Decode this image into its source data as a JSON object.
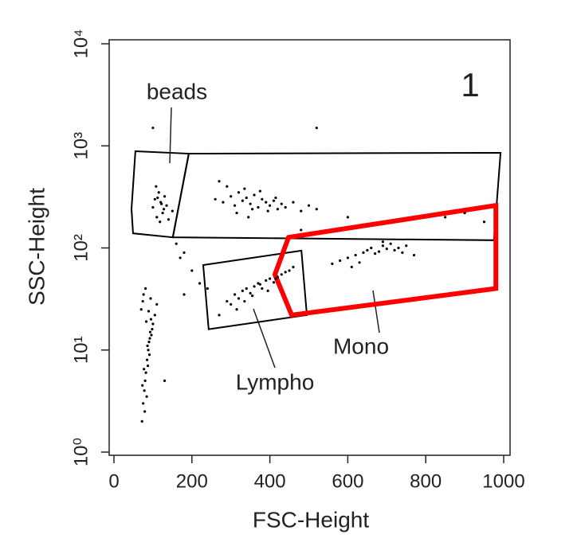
{
  "chart_data": {
    "type": "scatter",
    "xlabel": "FSC-Height",
    "ylabel": "SSC-Height",
    "xlim": [
      0,
      1000
    ],
    "xticks": [
      0,
      200,
      400,
      600,
      800,
      1000
    ],
    "ylim": [
      1,
      10000
    ],
    "yscale": "log",
    "yticks": [
      {
        "value": 1,
        "label": "10⁰"
      },
      {
        "value": 10,
        "label": "10¹"
      },
      {
        "value": 100,
        "label": "10²"
      },
      {
        "value": 1000,
        "label": "10³"
      },
      {
        "value": 10000,
        "label": "10⁴"
      }
    ],
    "annotations": [
      "beads",
      "1",
      "Lympho",
      "Mono"
    ],
    "gates": [
      {
        "color": "#000000",
        "x": [
          55,
          192,
          151,
          49,
          45
        ],
        "y": [
          885,
          839,
          127,
          139,
          240
        ]
      },
      {
        "color": "#000000",
        "x": [
          192,
          992,
          975,
          151
        ],
        "y": [
          839,
          855,
          119,
          127
        ]
      },
      {
        "color": "#000000",
        "x": [
          229,
          481,
          495,
          243
        ],
        "y": [
          68,
          94,
          22,
          16
        ]
      },
      {
        "color": "#ff0000",
        "x": [
          448,
          980,
          980,
          456,
          413
        ],
        "y": [
          127,
          261,
          40,
          22,
          55
        ]
      }
    ],
    "series": [
      {
        "color": "#000000",
        "x": [
          72,
          75,
          78,
          80,
          82,
          85,
          88,
          90,
          93,
          95,
          70,
          74,
          79,
          84,
          87,
          91,
          96,
          100,
          105,
          110,
          76,
          81,
          86,
          92,
          98,
          73,
          77,
          83,
          89,
          94,
          100,
          105,
          110,
          115,
          120,
          125,
          130,
          135,
          108,
          118,
          128,
          112,
          122,
          140,
          150,
          260,
          280,
          300,
          310,
          320,
          330,
          340,
          350,
          360,
          370,
          380,
          390,
          400,
          410,
          420,
          430,
          290,
          315,
          335,
          355,
          375,
          395,
          415,
          440,
          460,
          480,
          500,
          520,
          270,
          345,
          290,
          300,
          310,
          320,
          330,
          340,
          350,
          360,
          370,
          380,
          390,
          400,
          410,
          420,
          430,
          440,
          450,
          315,
          335,
          355,
          375,
          395,
          415,
          270,
          460,
          560,
          580,
          600,
          620,
          640,
          650,
          660,
          670,
          680,
          690,
          700,
          710,
          720,
          730,
          740,
          750,
          770,
          610,
          630,
          690,
          100,
          520,
          180,
          240,
          170,
          200,
          480,
          850,
          900,
          950,
          160,
          220,
          180,
          130,
          600
        ],
        "y": [
          2,
          3,
          4,
          5,
          6,
          8,
          10,
          12,
          15,
          20,
          25,
          30,
          2.5,
          3.5,
          7,
          9,
          14,
          18,
          22,
          28,
          35,
          40,
          11,
          13,
          16,
          4.5,
          6.5,
          19,
          24,
          32,
          250,
          300,
          200,
          350,
          280,
          220,
          320,
          260,
          400,
          180,
          240,
          310,
          270,
          190,
          230,
          300,
          280,
          320,
          260,
          350,
          290,
          310,
          270,
          330,
          250,
          300,
          280,
          260,
          290,
          240,
          270,
          400,
          220,
          380,
          240,
          360,
          230,
          310,
          250,
          280,
          230,
          260,
          240,
          450,
          200,
          30,
          28,
          35,
          32,
          38,
          40,
          36,
          42,
          45,
          40,
          48,
          50,
          46,
          52,
          55,
          58,
          60,
          25,
          30,
          34,
          44,
          38,
          50,
          22,
          65,
          70,
          75,
          80,
          85,
          90,
          95,
          100,
          88,
          92,
          105,
          98,
          110,
          95,
          100,
          90,
          105,
          85,
          65,
          72,
          115,
          1500,
          1500,
          35,
          40,
          80,
          60,
          150,
          200,
          220,
          180,
          110,
          45,
          90,
          5,
          200
        ]
      }
    ]
  }
}
